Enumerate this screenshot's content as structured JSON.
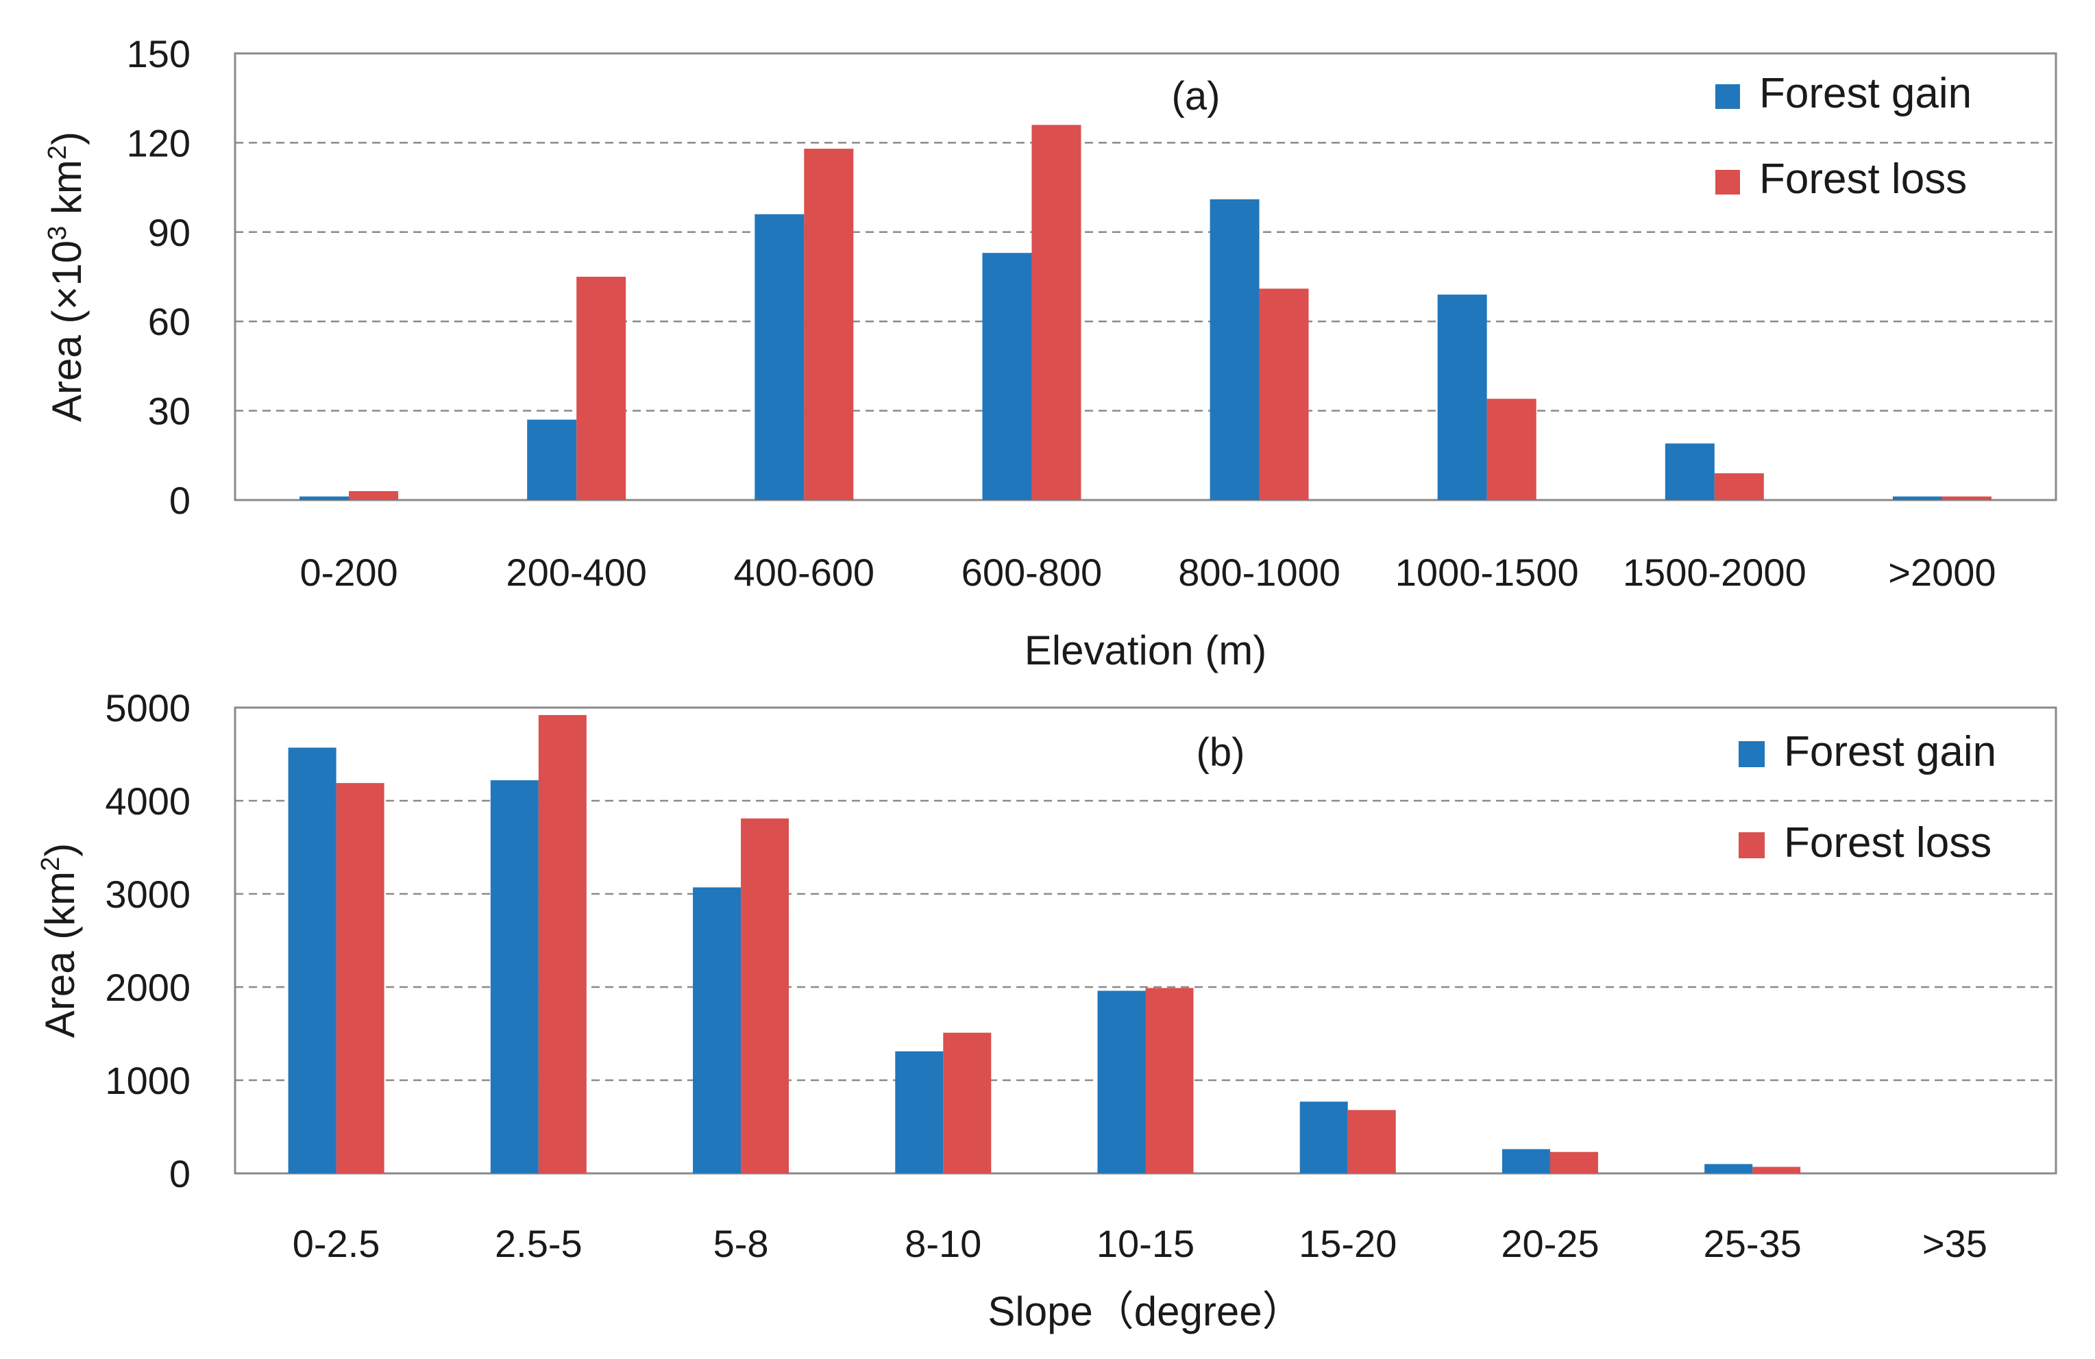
{
  "chart_data": [
    {
      "type": "bar",
      "panel_label": "(a)",
      "title": "",
      "xlabel": "Elevation (m)",
      "ylabel_parts": [
        "Area (×10",
        "3",
        " km",
        "2",
        ")"
      ],
      "ylim": [
        0,
        150
      ],
      "yticks": [
        "0",
        "30",
        "60",
        "90",
        "120",
        "150"
      ],
      "categories": [
        "0-200",
        "200-400",
        "400-600",
        "600-800",
        "800-1000",
        "1000-1500",
        "1500-2000",
        ">2000"
      ],
      "series": [
        {
          "name": "Forest gain",
          "color": "#2077bc",
          "values": [
            1.2,
            27,
            96,
            83,
            101,
            69,
            19,
            1.2
          ]
        },
        {
          "name": "Forest loss",
          "color": "#db4f4f",
          "values": [
            3,
            75,
            118,
            126,
            71,
            34,
            9,
            1.2
          ]
        }
      ],
      "grid": true,
      "legend_position": "top-right"
    },
    {
      "type": "bar",
      "panel_label": "(b)",
      "title": "",
      "xlabel": "Slope（degree）",
      "ylabel_parts": [
        "Area (km",
        "2",
        ")"
      ],
      "ylim": [
        0,
        5000
      ],
      "yticks": [
        "0",
        "1000",
        "2000",
        "3000",
        "4000",
        "5000"
      ],
      "categories": [
        "0-2.5",
        "2.5-5",
        "5-8",
        "8-10",
        "10-15",
        "15-20",
        "20-25",
        "25-35",
        ">35"
      ],
      "series": [
        {
          "name": "Forest gain",
          "color": "#2077bc",
          "values": [
            4570,
            4220,
            3070,
            1310,
            1960,
            770,
            260,
            100,
            0
          ]
        },
        {
          "name": "Forest loss",
          "color": "#db4f4f",
          "values": [
            4190,
            4920,
            3810,
            1510,
            1990,
            680,
            230,
            70,
            0
          ]
        }
      ],
      "grid": true,
      "legend_position": "top-right"
    }
  ]
}
